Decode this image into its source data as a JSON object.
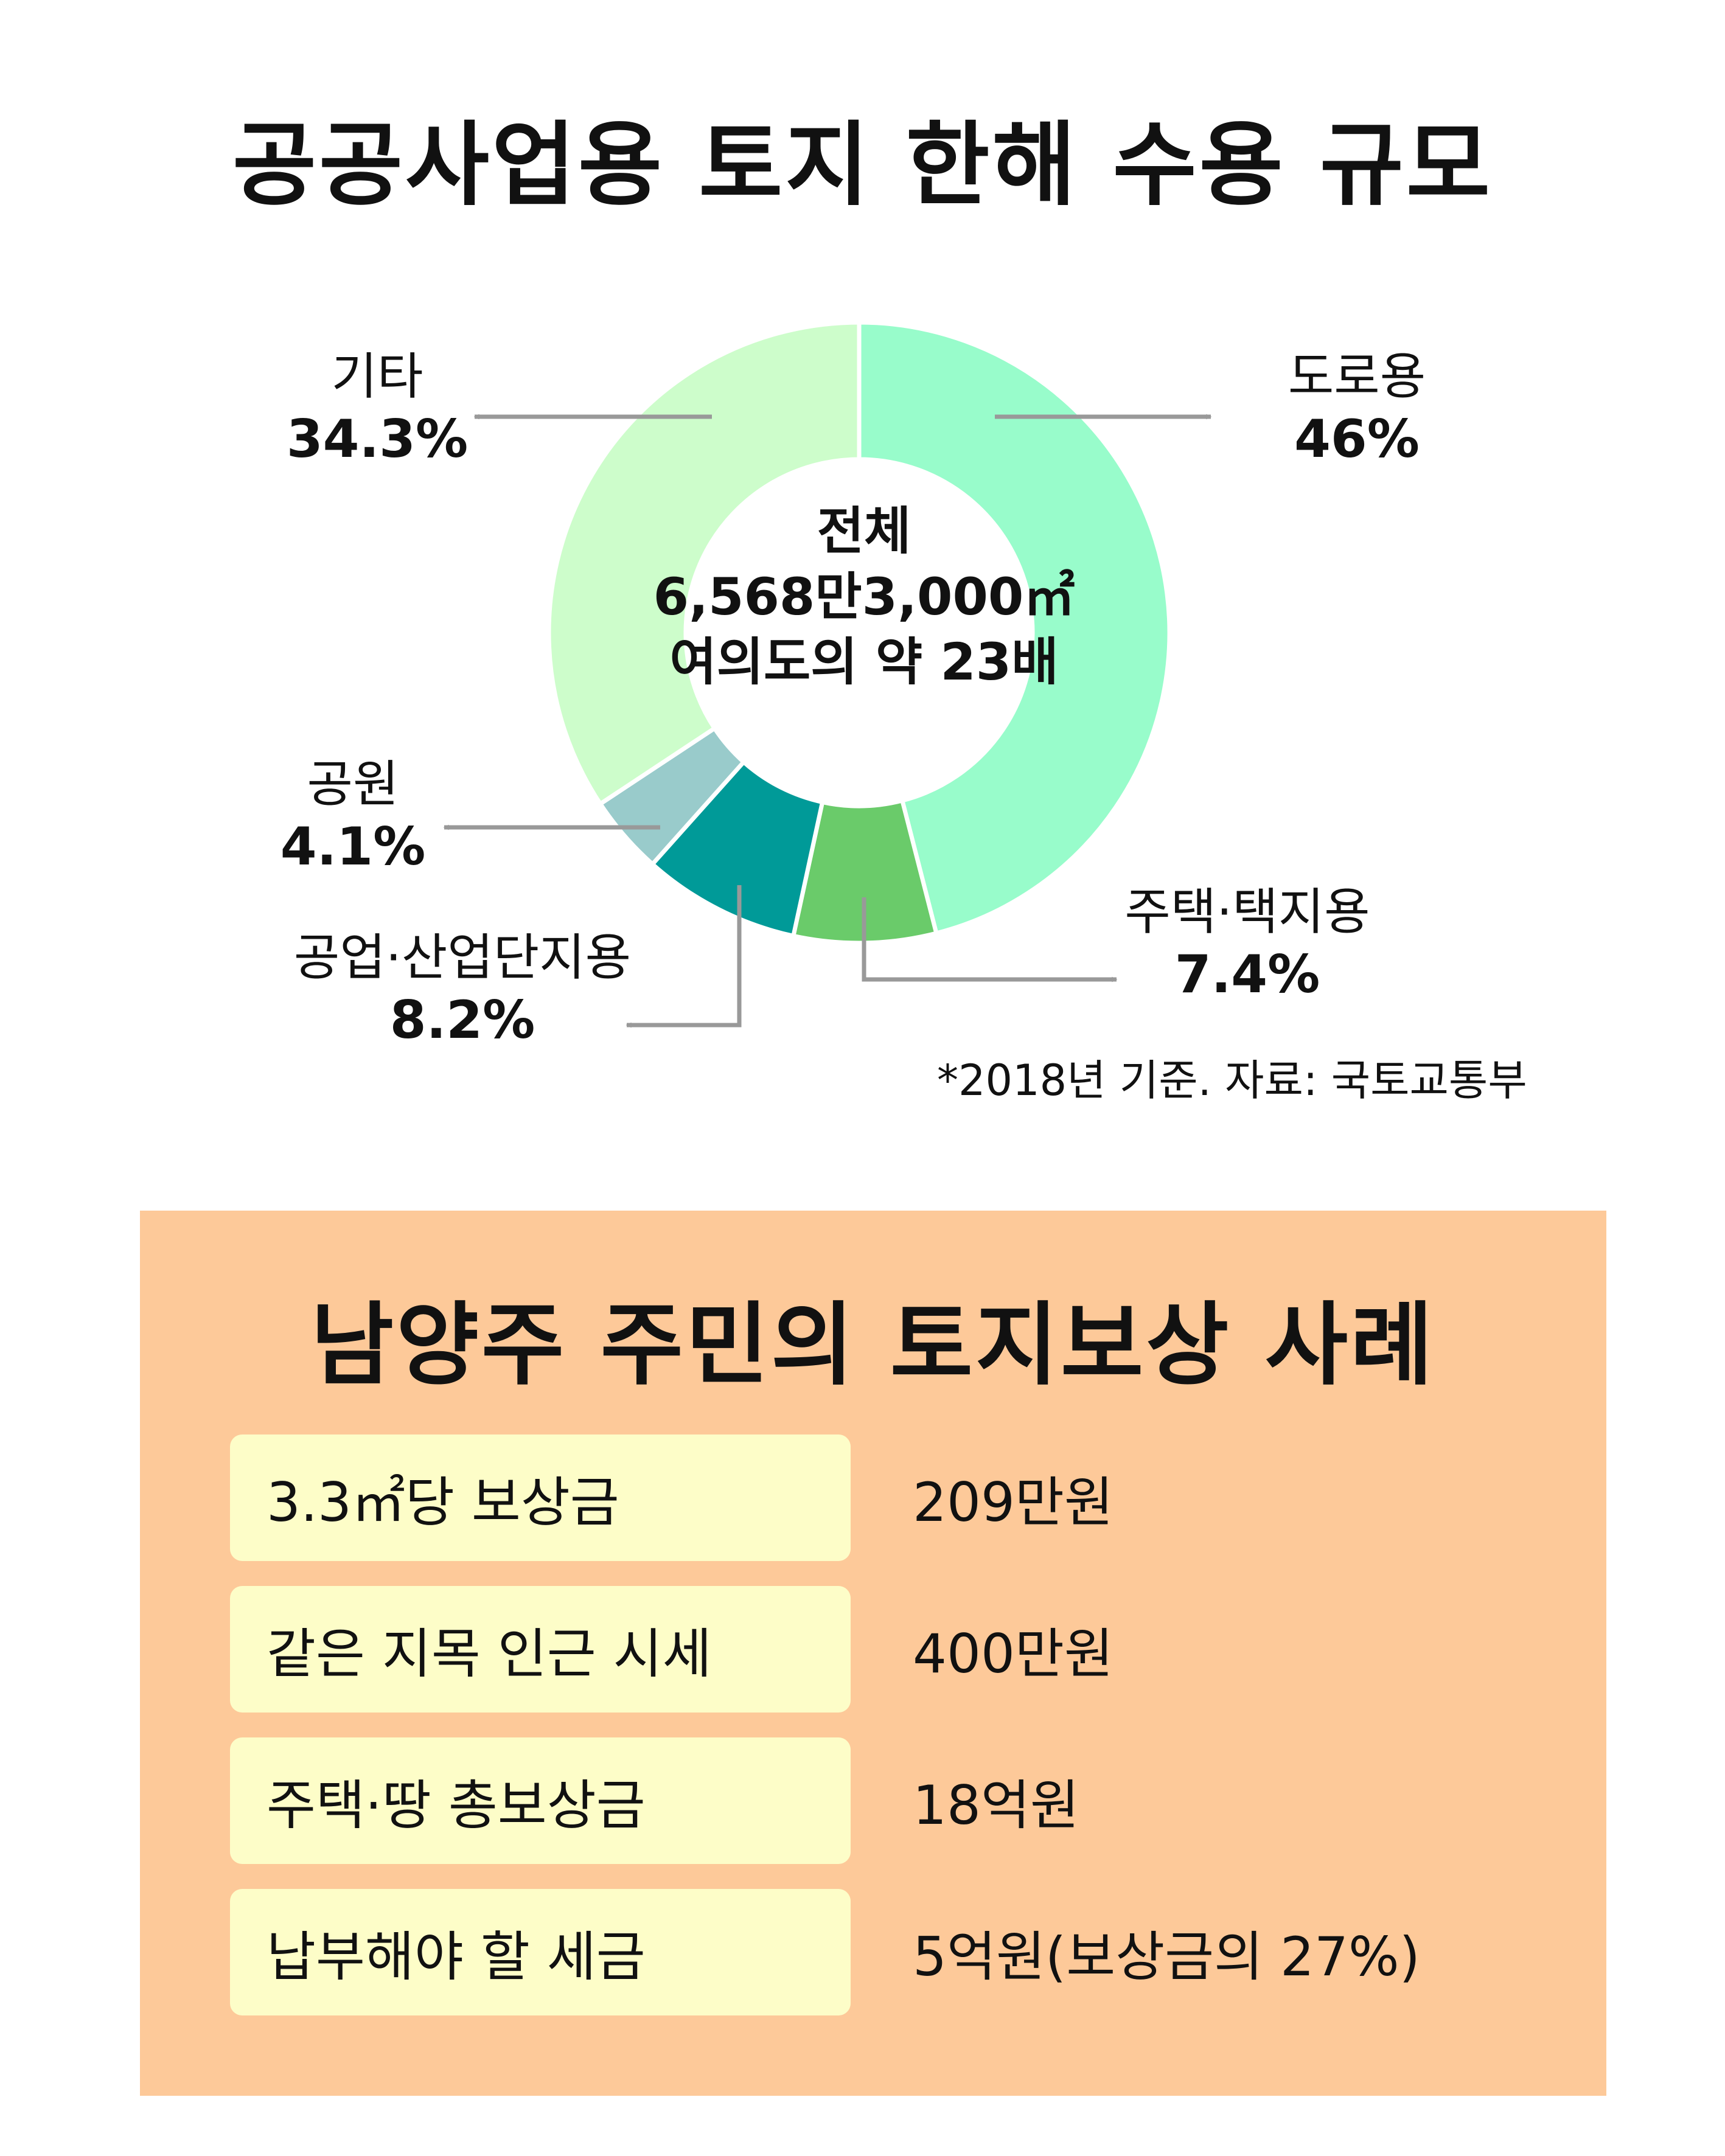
{
  "chart_data": {
    "type": "pie",
    "title": "공공사업용 토지 한해 수용 규모",
    "center_text": [
      "전체",
      "6,568만3,000㎡",
      "여의도의 약 23배"
    ],
    "slices": [
      {
        "label": "도로용",
        "value": 46,
        "value_label": "46%",
        "color": "#98fccb"
      },
      {
        "label": "주택·택지용",
        "value": 7.4,
        "value_label": "7.4%",
        "color": "#6acb6a"
      },
      {
        "label": "공업·산업단지용",
        "value": 8.2,
        "value_label": "8.2%",
        "color": "#009a98"
      },
      {
        "label": "공원",
        "value": 4.1,
        "value_label": "4.1%",
        "color": "#99cbcb"
      },
      {
        "label": "기타",
        "value": 34.3,
        "value_label": "34.3%",
        "color": "#cdfdcb"
      }
    ],
    "source": "*2018년 기준. 자료: 국토교통부"
  },
  "panel": {
    "title": "남양주 주민의 토지보상 사례",
    "rows": [
      {
        "label": "3.3㎡당 보상금",
        "value": "209만원"
      },
      {
        "label": "같은 지목 인근 시세",
        "value": "400만원"
      },
      {
        "label": "주택·땅 총보상금",
        "value": "18억원"
      },
      {
        "label": "납부해야 할 세금",
        "value": "5억원(보상금의 27%)"
      }
    ]
  },
  "colors": {
    "panel_bg": "#fdc999",
    "row_bg": "#fdfdc8",
    "arrow": "#999999"
  }
}
